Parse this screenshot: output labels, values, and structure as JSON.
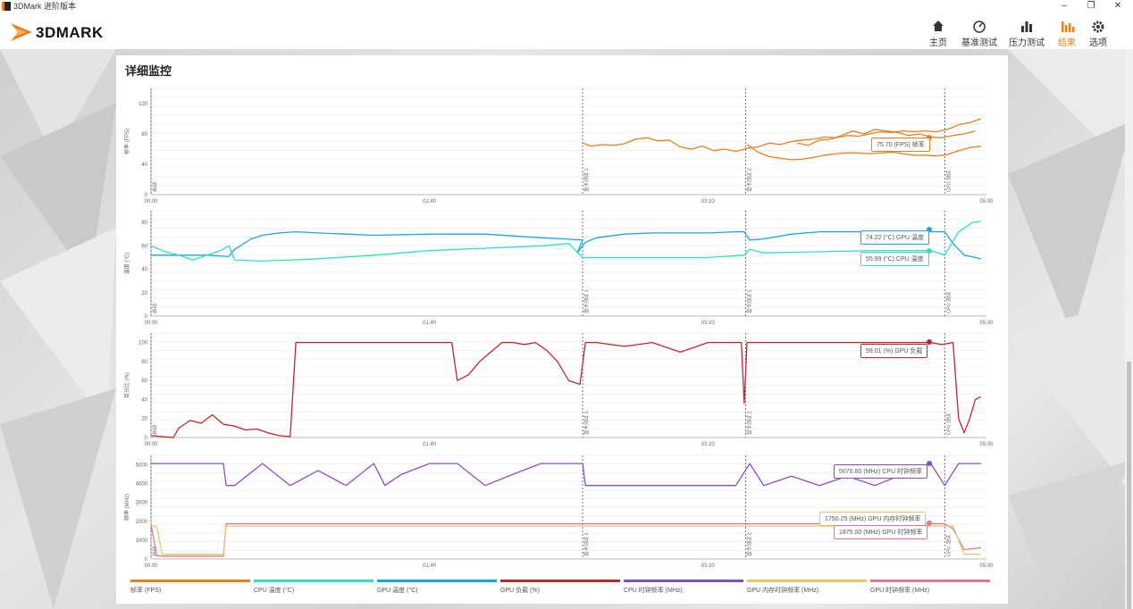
{
  "window": {
    "title": "3DMark 进阶版本",
    "min": "–",
    "max": "❐",
    "close": "✕"
  },
  "header": {
    "logo_text": "3DMARK",
    "nav": [
      {
        "label": "主页",
        "icon": "home-icon"
      },
      {
        "label": "基准测试",
        "icon": "gauge-icon"
      },
      {
        "label": "压力测试",
        "icon": "bar-chart-icon"
      },
      {
        "label": "结果",
        "icon": "results-icon",
        "active": true
      },
      {
        "label": "选项",
        "icon": "gear-icon"
      }
    ]
  },
  "panel": {
    "title": "详细监控"
  },
  "colors": {
    "fps": "#e8801f",
    "cpu_temp": "#2de0c0",
    "gpu_temp": "#1ba6e0",
    "gpu_load": "#c0272d",
    "cpu_clock": "#8a4fbf",
    "gpu_mem_clock": "#e8c56a",
    "gpu_clock": "#e07a90"
  },
  "markers": [
    "启动",
    "显卡测试 1",
    "显卡测试 2",
    "CPU 测试"
  ],
  "chart_data": [
    {
      "type": "line",
      "ylabel": "帧率 (FPS)",
      "xlim": [
        0,
        300
      ],
      "ylim": [
        0,
        140
      ],
      "yticks": [
        0,
        40,
        80,
        120
      ],
      "xticks": [
        "00:00",
        "01:40",
        "03:20",
        "05:00"
      ],
      "series": [
        {
          "name": "帧率 (FPS)",
          "x": [
            155,
            158,
            162,
            166,
            170,
            174,
            178,
            182,
            186,
            190,
            194,
            198,
            202,
            206,
            210,
            214,
            218,
            222,
            226,
            230,
            234,
            238,
            242,
            246,
            250,
            254,
            258,
            262,
            266,
            270,
            274,
            278,
            282,
            286,
            290,
            294,
            298
          ],
          "values": [
            68,
            64,
            66,
            65,
            67,
            73,
            75,
            71,
            72,
            63,
            60,
            64,
            58,
            60,
            57,
            61,
            63,
            68,
            66,
            70,
            72,
            73,
            76,
            75,
            78,
            77,
            80,
            83,
            82,
            84,
            83,
            84,
            83,
            86,
            92,
            95,
            100
          ]
        },
        {
          "name": "帧率 (FPS) 2",
          "x": [
            214,
            218,
            222,
            226,
            230,
            234,
            238,
            242,
            246,
            250,
            254,
            258,
            262,
            266,
            270,
            274,
            278,
            282,
            286,
            290,
            294,
            298
          ],
          "values": [
            66,
            56,
            50,
            48,
            46,
            47,
            49,
            52,
            54,
            55,
            55,
            54,
            55,
            56,
            54,
            52,
            52,
            51,
            53,
            58,
            62,
            64
          ]
        },
        {
          "name": "帧率 (FPS) 3",
          "x": [
            232,
            236,
            240,
            244,
            248,
            252,
            256,
            260,
            264,
            268,
            272,
            276,
            280,
            284,
            288,
            292,
            296
          ],
          "values": [
            68,
            65,
            72,
            73,
            78,
            84,
            80,
            86,
            84,
            82,
            78,
            80,
            76,
            75,
            78,
            80,
            84
          ]
        }
      ],
      "tooltips": [
        {
          "text": "75.70 (FPS) 帧率"
        }
      ]
    },
    {
      "type": "line",
      "ylabel": "温度 (°C)",
      "xlim": [
        0,
        300
      ],
      "ylim": [
        0,
        90
      ],
      "yticks": [
        0,
        20,
        40,
        60,
        80
      ],
      "xticks": [
        "00:00",
        "01:40",
        "03:20",
        "05:00"
      ],
      "series": [
        {
          "name": "GPU 温度 (°C)",
          "x": [
            0,
            20,
            27,
            28,
            30,
            36,
            40,
            46,
            52,
            60,
            70,
            80,
            100,
            120,
            140,
            155,
            153,
            156,
            160,
            170,
            180,
            190,
            200,
            210,
            213,
            215,
            220,
            230,
            240,
            250,
            260,
            270,
            280,
            285,
            288,
            292,
            298
          ],
          "values": [
            52,
            52,
            51,
            51,
            57,
            66,
            69,
            71,
            72,
            71,
            70,
            69,
            70,
            70,
            67,
            65,
            54,
            63,
            67,
            70,
            71,
            71,
            71,
            72,
            72,
            65,
            66,
            70,
            72,
            72,
            72,
            72,
            72,
            72,
            62,
            52,
            49
          ]
        },
        {
          "name": "CPU 温度 (°C)",
          "x": [
            0,
            5,
            10,
            15,
            20,
            25,
            28,
            30,
            40,
            50,
            60,
            80,
            100,
            120,
            140,
            150,
            155,
            160,
            180,
            200,
            213,
            215,
            220,
            240,
            260,
            280,
            285,
            290,
            295,
            298
          ],
          "values": [
            60,
            55,
            52,
            48,
            52,
            56,
            60,
            48,
            47,
            48,
            49,
            52,
            56,
            58,
            60,
            62,
            50,
            50,
            50,
            50,
            52,
            57,
            54,
            55,
            56,
            56,
            52,
            72,
            80,
            81
          ]
        }
      ],
      "tooltips": [
        {
          "text": "74.22 (°C) GPU 温度"
        },
        {
          "text": "55.99 (°C) CPU 温度"
        }
      ]
    },
    {
      "type": "line",
      "ylabel": "百分比 (%)",
      "xlim": [
        0,
        300
      ],
      "ylim": [
        0,
        110
      ],
      "yticks": [
        0,
        20,
        40,
        60,
        80,
        100
      ],
      "xticks": [
        "00:00",
        "01:40",
        "03:20",
        "05:00"
      ],
      "series": [
        {
          "name": "GPU 负载 (%)",
          "x": [
            0,
            4,
            8,
            10,
            14,
            18,
            22,
            26,
            30,
            34,
            38,
            42,
            46,
            50,
            52,
            60,
            80,
            100,
            108,
            110,
            114,
            118,
            122,
            126,
            130,
            134,
            138,
            142,
            146,
            150,
            154,
            156,
            160,
            170,
            180,
            190,
            200,
            204,
            208,
            212,
            213,
            214,
            220,
            240,
            260,
            280,
            284,
            288,
            290,
            292,
            294,
            296,
            298
          ],
          "values": [
            2,
            1,
            0,
            10,
            18,
            15,
            24,
            14,
            12,
            8,
            9,
            5,
            2,
            1,
            100,
            100,
            100,
            100,
            100,
            60,
            66,
            80,
            90,
            100,
            100,
            98,
            100,
            92,
            80,
            60,
            56,
            100,
            100,
            96,
            100,
            90,
            100,
            100,
            100,
            100,
            36,
            100,
            100,
            100,
            100,
            100,
            98,
            100,
            20,
            5,
            20,
            40,
            43
          ]
        }
      ],
      "tooltips": [
        {
          "text": "99.01 (%) GPU 负载"
        }
      ]
    },
    {
      "type": "line",
      "ylabel": "频率 (MHz)",
      "xlim": [
        0,
        300
      ],
      "ylim": [
        0,
        5500
      ],
      "yticks": [
        0,
        1000,
        2000,
        3000,
        4000,
        5000
      ],
      "xticks": [
        "00:00",
        "01:40",
        "03:20",
        "05:00"
      ],
      "series": [
        {
          "name": "CPU 时钟频率 (MHz)",
          "x": [
            0,
            26,
            27,
            30,
            40,
            50,
            60,
            70,
            80,
            84,
            90,
            100,
            110,
            120,
            130,
            140,
            150,
            155,
            156,
            160,
            170,
            180,
            190,
            200,
            210,
            215,
            220,
            230,
            240,
            250,
            260,
            270,
            280,
            285,
            290,
            298
          ],
          "values": [
            5070,
            5070,
            3900,
            3900,
            5070,
            3900,
            4700,
            3900,
            5070,
            3900,
            4500,
            5070,
            5070,
            3900,
            4500,
            5070,
            5070,
            5070,
            3900,
            3900,
            3900,
            3900,
            3900,
            3900,
            3900,
            5070,
            3900,
            4400,
            3900,
            4400,
            3900,
            4500,
            5070,
            3900,
            5070,
            5070
          ]
        },
        {
          "name": "GPU 时钟频率 (MHz)",
          "x": [
            0,
            2,
            4,
            10,
            20,
            26,
            27,
            30,
            60,
            100,
            150,
            200,
            250,
            285,
            288,
            292,
            298
          ],
          "values": [
            1875,
            200,
            150,
            150,
            150,
            150,
            1875,
            1875,
            1875,
            1875,
            1875,
            1875,
            1875,
            1875,
            1600,
            500,
            600
          ]
        },
        {
          "name": "GPU 内存时钟频率 (MHz)",
          "x": [
            0,
            2,
            4,
            10,
            20,
            26,
            27,
            30,
            60,
            100,
            150,
            200,
            250,
            285,
            288,
            292,
            298
          ],
          "values": [
            1750,
            1750,
            250,
            250,
            250,
            250,
            1750,
            1750,
            1750,
            1750,
            1750,
            1750,
            1750,
            1750,
            1750,
            250,
            250
          ]
        }
      ],
      "tooltips": [
        {
          "text": "5070.60 (MHz) CPU 时钟频率"
        },
        {
          "text": "1750.25 (MHz) GPU 内存时钟频率"
        },
        {
          "text": "1875.00 (MHz) GPU 时钟频率"
        }
      ]
    }
  ],
  "legend": [
    {
      "label": "帧率 (FPS)",
      "color": "#e8801f"
    },
    {
      "label": "CPU 温度 (°C)",
      "color": "#2de0c0"
    },
    {
      "label": "GPU 温度 (°C)",
      "color": "#1ba6e0"
    },
    {
      "label": "GPU 负载 (%)",
      "color": "#c0272d"
    },
    {
      "label": "CPU 时钟频率 (MHz)",
      "color": "#8a4fbf"
    },
    {
      "label": "GPU 内存时钟频率 (MHz)",
      "color": "#e8c56a"
    },
    {
      "label": "GPU 时钟频率 (MHz)",
      "color": "#e07a90"
    }
  ]
}
